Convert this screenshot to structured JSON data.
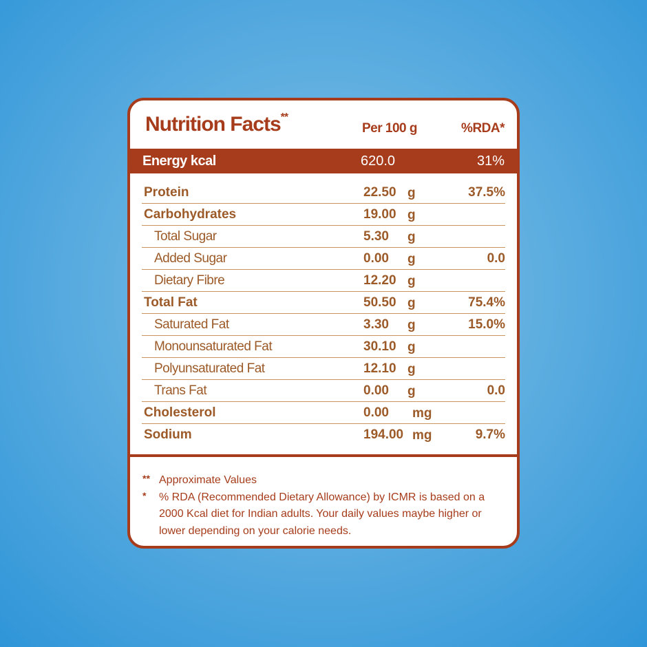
{
  "header": {
    "title": "Nutrition Facts",
    "title_mark": "**",
    "per_label": "Per 100 g",
    "rda_label": "%RDA*"
  },
  "energy": {
    "label": "Energy kcal",
    "value": "620.0",
    "rda": "31%"
  },
  "rows": [
    {
      "label": "Protein",
      "value": "22.50",
      "unit": "g",
      "rda": "37.5%"
    },
    {
      "label": "Carbohydrates",
      "value": "19.00",
      "unit": "g",
      "rda": ""
    },
    {
      "label": "Total Sugar",
      "value": "5.30",
      "unit": "g",
      "rda": ""
    },
    {
      "label": "Added Sugar",
      "value": "0.00",
      "unit": "g",
      "rda": "0.0"
    },
    {
      "label": "Dietary Fibre",
      "value": "12.20",
      "unit": "g",
      "rda": ""
    },
    {
      "label": "Total Fat",
      "value": "50.50",
      "unit": "g",
      "rda": "75.4%"
    },
    {
      "label": "Saturated Fat",
      "value": "3.30",
      "unit": "g",
      "rda": "15.0%"
    },
    {
      "label": "Monounsaturated Fat",
      "value": "30.10",
      "unit": "g",
      "rda": ""
    },
    {
      "label": "Polyunsaturated Fat",
      "value": "12.10",
      "unit": "g",
      "rda": ""
    },
    {
      "label": "Trans Fat",
      "value": "0.00",
      "unit": "g",
      "rda": "0.0"
    },
    {
      "label": "Cholesterol",
      "value": "0.00",
      "unit": "mg",
      "rda": ""
    },
    {
      "label": "Sodium",
      "value": "194.00",
      "unit": "mg",
      "rda": "9.7%"
    }
  ],
  "footnotes": [
    {
      "mark": "**",
      "text": "Approximate Values"
    },
    {
      "mark": "*",
      "text": "% RDA (Recommended Dietary Allowance) by ICMR is based on a 2000 Kcal diet for Indian adults. Your daily values maybe higher or lower depending on your calorie needs."
    }
  ],
  "colors": {
    "brand": "#a63c1b",
    "row_text": "#9c5a28",
    "divider": "#c9955c",
    "background": "#4aa3dd"
  }
}
